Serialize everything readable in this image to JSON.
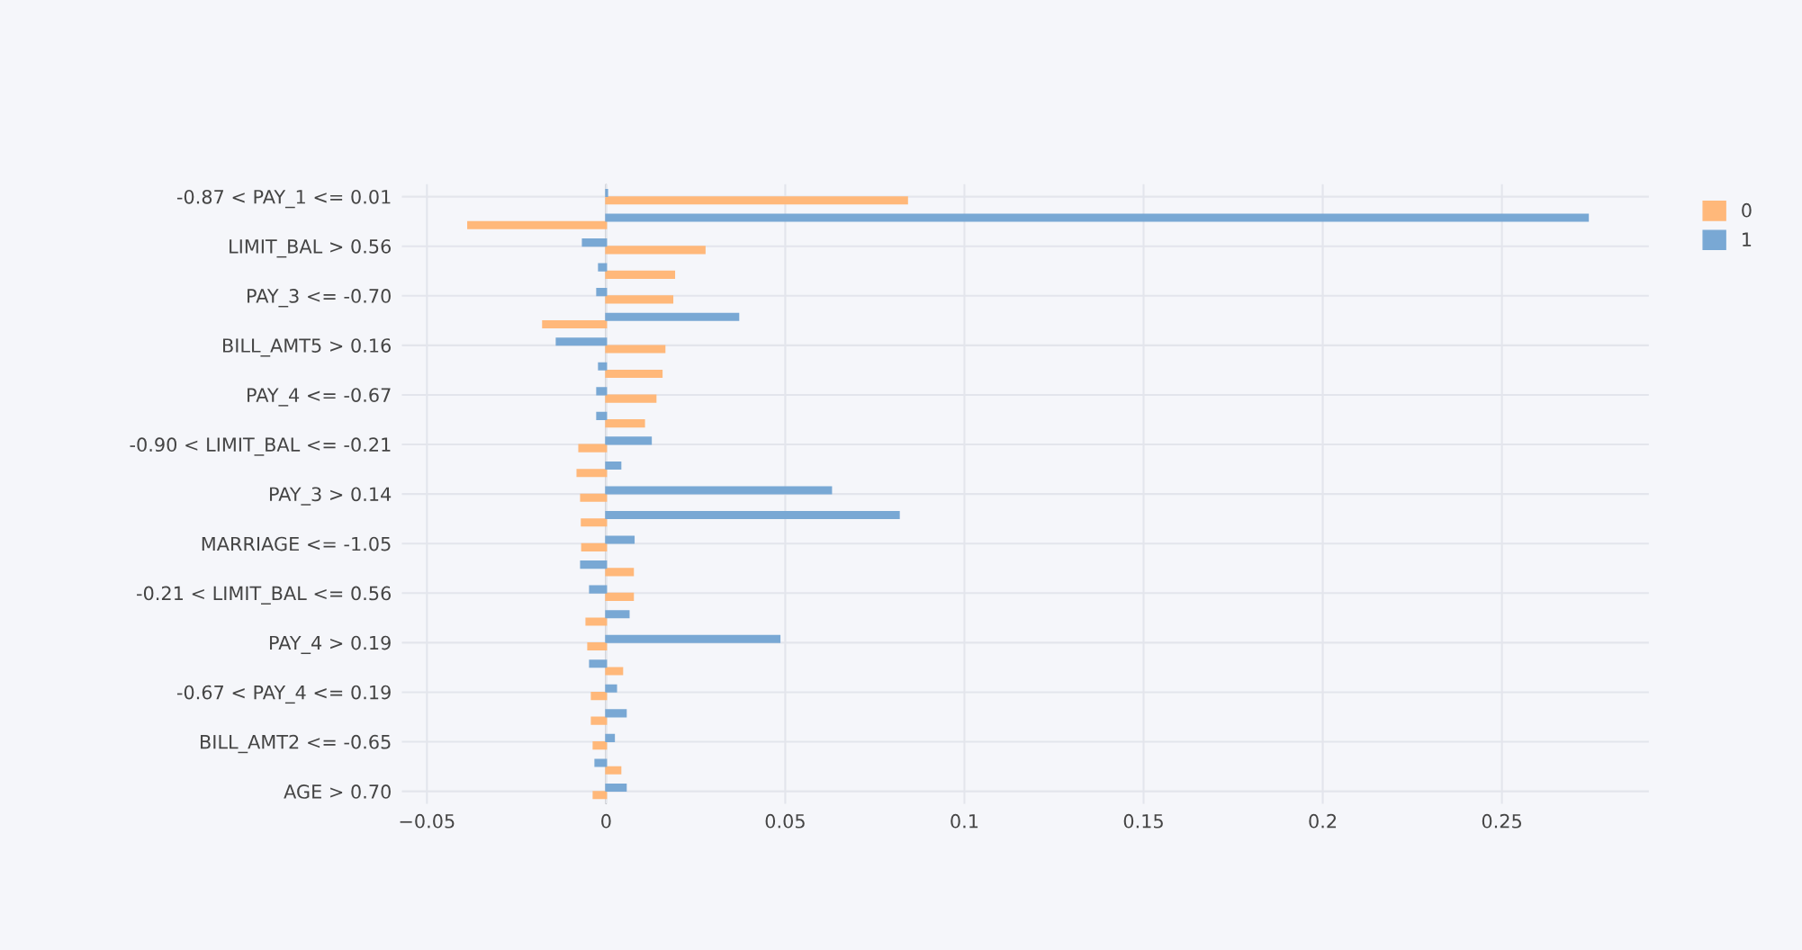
{
  "chart_data": {
    "type": "bar",
    "orientation": "horizontal",
    "categories": [
      "-0.87 < PAY_1 <= 0.01",
      null,
      "LIMIT_BAL > 0.56",
      null,
      "PAY_3 <= -0.70",
      null,
      "BILL_AMT5 > 0.16",
      null,
      "PAY_4 <= -0.67",
      null,
      "-0.90 < LIMIT_BAL <= -0.21",
      null,
      "PAY_3 > 0.14",
      null,
      "MARRIAGE <= -1.05",
      null,
      "-0.21 < LIMIT_BAL <= 0.56",
      null,
      "PAY_4 > 0.19",
      null,
      "-0.67 < PAY_4 <= 0.19",
      null,
      "BILL_AMT2 <= -0.65",
      null,
      "AGE > 0.70"
    ],
    "series": [
      {
        "name": "0",
        "color": "#ffb87a",
        "values": [
          0.084,
          -0.0385,
          0.0275,
          0.019,
          0.0185,
          -0.0176,
          0.0163,
          0.0155,
          0.0138,
          0.0106,
          -0.0075,
          -0.008,
          -0.007,
          -0.0068,
          -0.0067,
          0.0075,
          0.0075,
          -0.0055,
          -0.005,
          0.0045,
          -0.004,
          -0.004,
          -0.0035,
          0.004,
          -0.0035
        ]
      },
      {
        "name": "1",
        "color": "#79a8d4",
        "values": [
          0.0003,
          0.274,
          -0.0065,
          -0.002,
          -0.0025,
          0.0369,
          -0.0138,
          -0.002,
          -0.0025,
          -0.0025,
          0.0125,
          0.004,
          0.0628,
          0.0817,
          0.0077,
          -0.007,
          -0.0045,
          0.0063,
          0.0484,
          -0.0045,
          0.0028,
          0.0055,
          0.0022,
          -0.003,
          0.0055
        ]
      }
    ],
    "xlim": [
      -0.057,
      0.291
    ],
    "xticks": [
      {
        "value": -0.05,
        "label": "−0.05"
      },
      0,
      0.05,
      0.1,
      0.15,
      0.2,
      0.25
    ],
    "grid": true,
    "legend": "top right"
  }
}
